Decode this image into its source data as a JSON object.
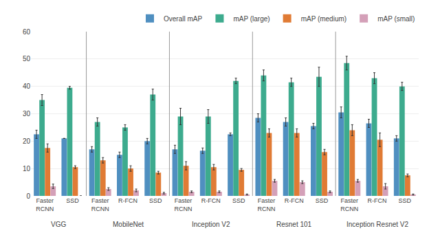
{
  "chart_data": {
    "type": "bar",
    "categories": [
      "Faster\nRCNN",
      "SSD",
      "Faster\nRCNN",
      "R-FCN",
      "SSD",
      "Faster\nRCNN",
      "R-FCN",
      "SSD",
      "Faster\nRCNN",
      "R-FCN",
      "SSD",
      "Faster\nRCNN",
      "R-FCN",
      "SSD"
    ],
    "groups": [
      "VGG",
      "VGG",
      "MobileNet",
      "MobileNet",
      "MobileNet",
      "Inception V2",
      "Inception V2",
      "Inception V2",
      "Resnet 101",
      "Resnet 101",
      "Resnet 101",
      "Inception Resnet V2",
      "Inception Resnet V2",
      "Inception Resnet V2"
    ],
    "series": [
      {
        "name": "Overall mAP",
        "color": "#4f8fc0",
        "values": [
          22.5,
          21.0,
          17.0,
          15.0,
          20.0,
          17.0,
          16.5,
          22.5,
          28.5,
          27.0,
          25.5,
          30.5,
          26.5,
          21.0
        ],
        "errors": [
          1.5,
          0.0,
          1.0,
          1.0,
          1.0,
          1.5,
          1.0,
          0.5,
          1.5,
          1.5,
          1.0,
          2.0,
          1.5,
          1.0
        ]
      },
      {
        "name": "mAP (large)",
        "color": "#3dab8e",
        "values": [
          35.0,
          39.5,
          27.0,
          25.0,
          37.0,
          29.0,
          29.0,
          42.0,
          44.0,
          41.5,
          43.5,
          48.5,
          43.0,
          40.0
        ],
        "errors": [
          2.0,
          0.5,
          1.5,
          1.0,
          2.0,
          3.0,
          2.5,
          1.0,
          2.0,
          1.5,
          3.5,
          2.5,
          2.0,
          1.5
        ]
      },
      {
        "name": "mAP (medium)",
        "color": "#e07b35",
        "values": [
          17.5,
          10.5,
          13.0,
          10.0,
          8.5,
          11.0,
          10.5,
          9.5,
          23.0,
          23.0,
          16.0,
          24.0,
          20.5,
          7.5
        ],
        "errors": [
          1.5,
          0.5,
          1.0,
          1.0,
          0.5,
          1.5,
          1.0,
          0.5,
          1.5,
          1.5,
          1.0,
          2.0,
          2.5,
          0.5
        ]
      },
      {
        "name": "mAP (small)",
        "color": "#d4a0b8",
        "values": [
          3.5,
          0.0,
          2.5,
          2.0,
          1.0,
          1.5,
          1.5,
          0.5,
          5.5,
          5.0,
          1.5,
          5.5,
          3.5,
          0.5
        ],
        "errors": [
          0.8,
          0.0,
          0.5,
          0.5,
          0.3,
          0.3,
          0.3,
          0.2,
          0.5,
          0.5,
          0.3,
          0.5,
          1.0,
          0.2
        ]
      }
    ],
    "ylim": [
      0,
      60
    ],
    "yticks": [
      0,
      10,
      20,
      30,
      40,
      50,
      60
    ],
    "grid": true,
    "legend": "upper right"
  }
}
